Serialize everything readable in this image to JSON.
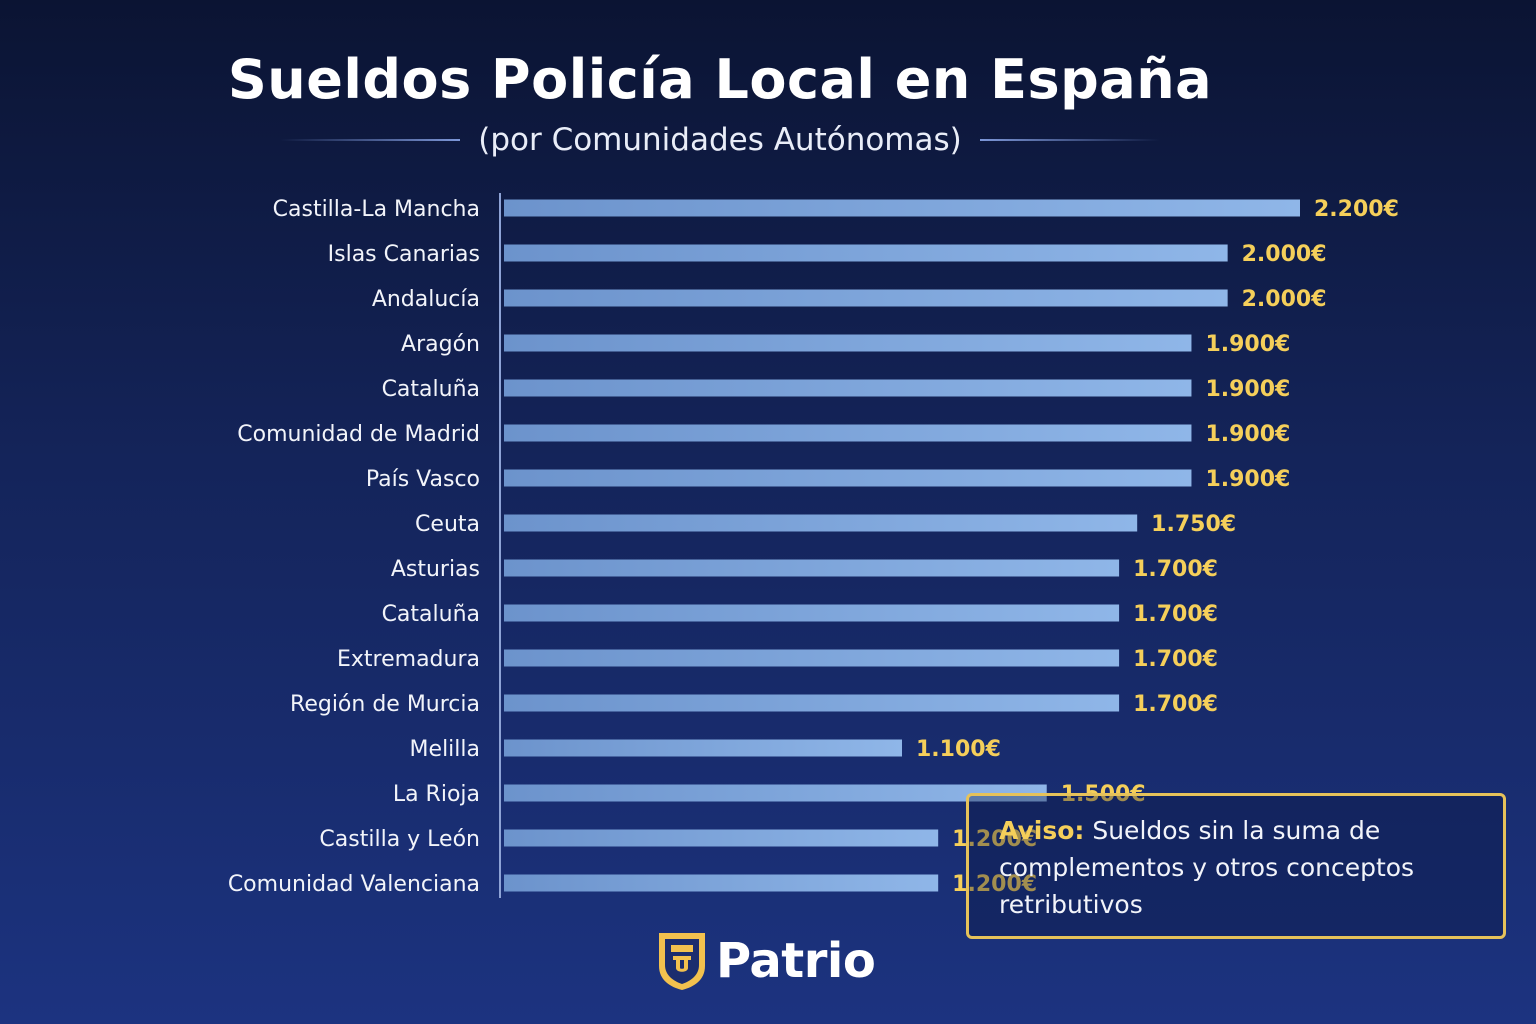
{
  "chart_data": {
    "type": "bar",
    "orientation": "horizontal",
    "title": "Sueldos Policía Local en España",
    "subtitle": "(por Comunidades Autónomas)",
    "categories": [
      "Castilla-La Mancha",
      "Islas Canarias",
      "Andalucía",
      "Aragón",
      "Cataluña",
      "Comunidad de Madrid",
      "País Vasco",
      "Ceuta",
      "Asturias",
      "Cataluña",
      "Extremadura",
      "Región de Murcia",
      "Melilla",
      "La Rioja",
      "Castilla y León",
      "Comunidad Valenciana"
    ],
    "values": [
      2200,
      2000,
      2000,
      1900,
      1900,
      1900,
      1900,
      1750,
      1700,
      1700,
      1700,
      1700,
      1100,
      1500,
      1200,
      1200
    ],
    "value_labels": [
      "2.200€",
      "2.000€",
      "2.000€",
      "1.900€",
      "1.900€",
      "1.900€",
      "1.900€",
      "1.750€",
      "1.700€",
      "1.700€",
      "1.700€",
      "1.700€",
      "1.100€",
      "1.500€",
      "1.200€",
      "1.200€"
    ],
    "xlabel": "",
    "ylabel": "",
    "grid": false,
    "bar_color": "#7ea8de",
    "label_color": "#f5cf5a"
  },
  "note": {
    "label": "Aviso:",
    "text": "Sueldos sin la suma de complementos y otros conceptos retributivos"
  },
  "brand": {
    "name": "Patrio"
  }
}
